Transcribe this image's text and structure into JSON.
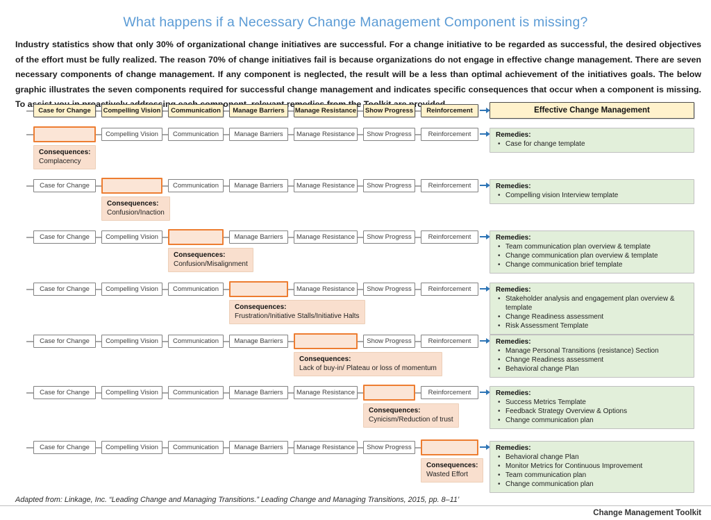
{
  "title": "What happens if a Necessary Change Management Component is missing?",
  "intro": "Industry statistics show that only 30% of organizational change initiatives are successful. For a change initiative to be regarded as successful, the desired objectives of the effort must be fully realized. The reason 70% of change initiatives fail is because organizations do not engage in effective change management. There are seven necessary components of change management. If any component is neglected, the result will be a less than optimal achievement of the initiatives goals. The below graphic illustrates the seven components required for successful change management and indicates specific consequences that occur when a component is missing. To assist you in proactively addressing each component, relevant remedies from the Toolkit are provided.",
  "components": [
    "Case for Change",
    "Compelling Vision",
    "Communication",
    "Manage Barriers",
    "Manage Resistance",
    "Show Progress",
    "Reinforcement"
  ],
  "header": {
    "result_label": "Effective Change Management"
  },
  "labels": {
    "consequences": "Consequences:",
    "remedies": "Remedies:"
  },
  "rows": [
    {
      "missing": 0,
      "consequences": "Complacency",
      "remedies": [
        "Case for change template"
      ]
    },
    {
      "missing": 1,
      "consequences": "Confusion/Inaction",
      "remedies": [
        "Compelling vision Interview template"
      ]
    },
    {
      "missing": 2,
      "consequences": "Confusion/Misalignment",
      "remedies": [
        "Team communication plan overview & template",
        "Change communication plan overview & template",
        "Change communication brief template"
      ]
    },
    {
      "missing": 3,
      "consequences": "Frustration/Initiative Stalls/Initiative Halts",
      "remedies": [
        "Stakeholder analysis and engagement plan overview & template",
        "Change Readiness assessment",
        "Risk Assessment Template"
      ]
    },
    {
      "missing": 4,
      "consequences": "Lack of buy-in/ Plateau or loss of momentum",
      "remedies": [
        "Manage Personal Transitions (resistance) Section",
        "Change Readiness assessment",
        "Behavioral change Plan"
      ]
    },
    {
      "missing": 5,
      "consequences": "Cynicism/Reduction of trust",
      "remedies": [
        "Success Metrics Template",
        "Feedback Strategy Overview & Options",
        "Change communication plan"
      ]
    },
    {
      "missing": 6,
      "consequences": "Wasted Effort",
      "remedies": [
        "Behavioral change Plan",
        "Monitor Metrics for Continuous Improvement",
        "Team communication plan",
        "Change communication plan"
      ]
    }
  ],
  "footer": {
    "citation": "Adapted from: Linkage, Inc. “Leading Change and Managing Transitions.” Leading Change and Managing Transitions, 2015, pp. 8–11’",
    "toolkit": "Change Management Toolkit"
  },
  "colors": {
    "title_blue": "#5B9BD5",
    "arrow_blue": "#2E75B6",
    "header_fill": "#FFF2CC",
    "missing_fill": "#FBE5D6",
    "missing_border": "#ED7D31",
    "consequence_fill": "#F9DFCE",
    "remedy_fill": "#E2EFDA"
  }
}
